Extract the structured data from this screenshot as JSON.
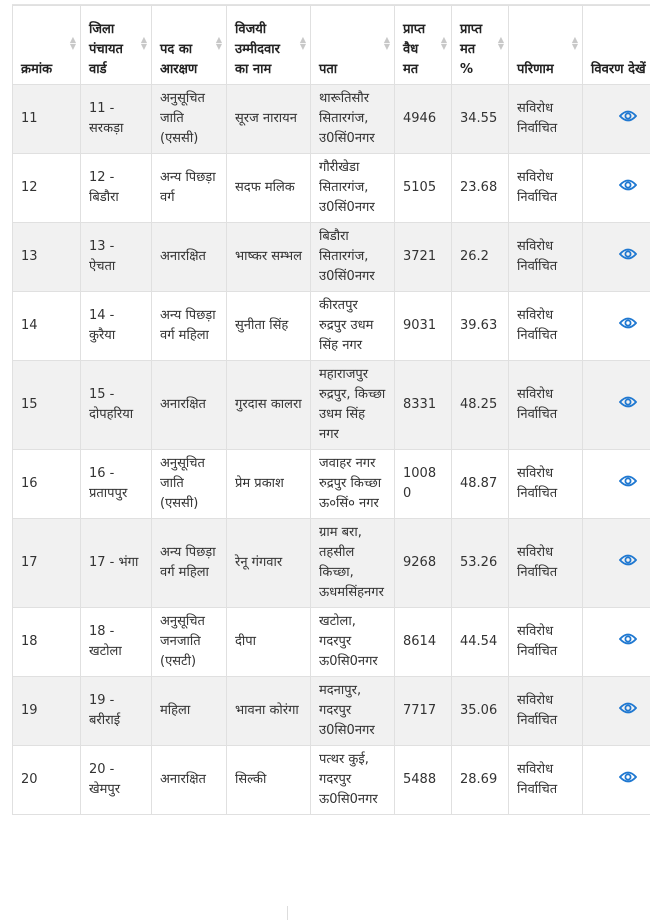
{
  "table": {
    "headers": [
      "क्रमांक",
      "जिला पंचायत वार्ड",
      "पद का आरक्षण",
      "विजयी उम्मीदवार का नाम",
      "पता",
      "प्राप्त वैध मत",
      "प्राप्त मत %",
      "परिणाम",
      "विवरण देखें"
    ],
    "rows": [
      {
        "no": "11",
        "ward": "11 - सरकड़ा",
        "reservation": "अनुसूचित जाति (एससी)",
        "winner": "सूरज नारायन",
        "address": "थारूतिसौर सितारगंज, उ0सिं0नगर",
        "votes": "4946",
        "percent": "34.55",
        "result": "सविरोध निर्वाचित",
        "icon": "eye-icon"
      },
      {
        "no": "12",
        "ward": "12 - बिडौरा",
        "reservation": "अन्य पिछड़ा वर्ग",
        "winner": "सदफ मलिक",
        "address": "गौरीखेडा सितारगंज, उ0सिं0नगर",
        "votes": "5105",
        "percent": "23.68",
        "result": "सविरोध निर्वाचित",
        "icon": "eye-icon"
      },
      {
        "no": "13",
        "ward": "13 - ऐचता",
        "reservation": "अनारक्षित",
        "winner": "भाष्कर सम्भल",
        "address": "बिडौरा सितारगंज, उ0सिं0नगर",
        "votes": "3721",
        "percent": "26.2",
        "result": "सविरोध निर्वाचित",
        "icon": "eye-icon"
      },
      {
        "no": "14",
        "ward": "14 - कुरैया",
        "reservation": "अन्य पिछड़ा वर्ग महिला",
        "winner": "सुनीता सिंह",
        "address": "कीरतपुर रुद्रपुर उधम सिंह नगर",
        "votes": "9031",
        "percent": "39.63",
        "result": "सविरोध निर्वाचित",
        "icon": "eye-icon"
      },
      {
        "no": "15",
        "ward": "15 - दोपहरिया",
        "reservation": "अनारक्षित",
        "winner": "गुरदास कालरा",
        "address": "महाराजपुर रुद्रपुर, किच्छा उधम सिंह नगर",
        "votes": "8331",
        "percent": "48.25",
        "result": "सविरोध निर्वाचित",
        "icon": "eye-icon"
      },
      {
        "no": "16",
        "ward": "16 - प्रतापपुर",
        "reservation": "अनुसूचित जाति (एससी)",
        "winner": "प्रेम प्रकाश",
        "address": "जवाहर नगर रुद्रपुर किच्छा ऊ०सिं० नगर",
        "votes": "10080",
        "percent": "48.87",
        "result": "सविरोध निर्वाचित",
        "icon": "eye-icon"
      },
      {
        "no": "17",
        "ward": "17 - भंगा",
        "reservation": "अन्य पिछड़ा वर्ग महिला",
        "winner": "रेनू गंगवार",
        "address": "ग्राम बरा, तहसील किच्छा, ऊधमसिंहनगर",
        "votes": "9268",
        "percent": "53.26",
        "result": "सविरोध निर्वाचित",
        "icon": "eye-icon"
      },
      {
        "no": "18",
        "ward": "18 - खटोला",
        "reservation": "अनुसूचित जनजाति (एसटी)",
        "winner": "दीपा",
        "address": "खटोला, गदरपुर ऊ0सि0नगर",
        "votes": "8614",
        "percent": "44.54",
        "result": "सविरोध निर्वाचित",
        "icon": "eye-icon"
      },
      {
        "no": "19",
        "ward": "19 - बरीराई",
        "reservation": "महिला",
        "winner": "भावना कोरंगा",
        "address": "मदनापुर, गदरपुर उ0सि0नगर",
        "votes": "7717",
        "percent": "35.06",
        "result": "सविरोध निर्वाचित",
        "icon": "eye-icon"
      },
      {
        "no": "20",
        "ward": "20 - खेमपुर",
        "reservation": "अनारक्षित",
        "winner": "सिल्की",
        "address": "पत्थर कुई, गदरपुर ऊ0सि0नगर",
        "votes": "5488",
        "percent": "28.69",
        "result": "सविरोध निर्वाचित",
        "icon": "eye-icon"
      }
    ]
  },
  "colors": {
    "accent": "#1f78d1",
    "stripe": "#f1f1f1",
    "border": "#e0e0e0"
  }
}
